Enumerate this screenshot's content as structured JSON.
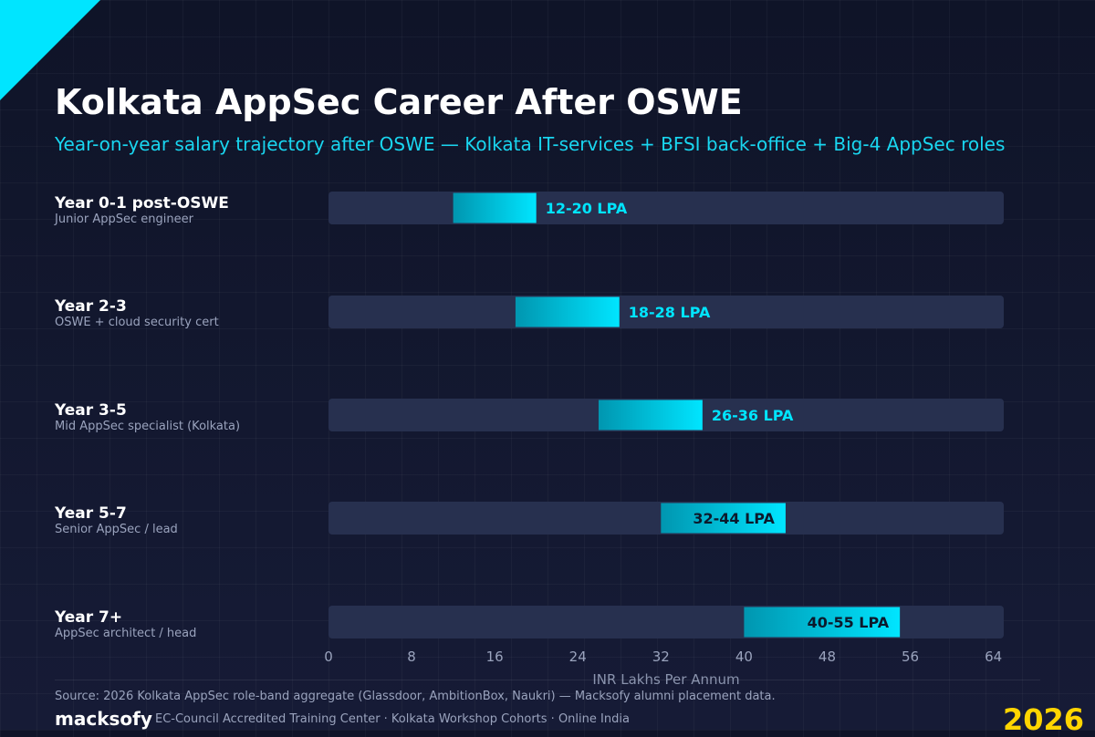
{
  "colors": {
    "accent": "#00e5ff",
    "accent_dark": "#0096b0",
    "track": "#27304f",
    "label_on_bar": "#0c1a2c",
    "year_highlight": "#ffd500"
  },
  "title": "Kolkata AppSec Career After OSWE",
  "subtitle": "Year-on-year salary trajectory after OSWE — Kolkata IT-services + BFSI back-office + Big-4 AppSec roles",
  "rows": [
    {
      "name": "Year 0-1 post-OSWE",
      "sub": "Junior AppSec engineer"
    },
    {
      "name": "Year 2-3",
      "sub": "OSWE + cloud security cert"
    },
    {
      "name": "Year 3-5",
      "sub": "Mid AppSec specialist (Kolkata)"
    },
    {
      "name": "Year 5-7",
      "sub": "Senior AppSec / lead"
    },
    {
      "name": "Year 7+",
      "sub": "AppSec architect / head"
    }
  ],
  "chart_data": {
    "type": "bar",
    "orientation": "horizontal",
    "style": "range",
    "categories": [
      "Year 0-1 post-OSWE",
      "Year 2-3",
      "Year 3-5",
      "Year 5-7",
      "Year 7+"
    ],
    "ranges": [
      [
        12,
        20
      ],
      [
        18,
        28
      ],
      [
        26,
        36
      ],
      [
        32,
        44
      ],
      [
        40,
        55
      ]
    ],
    "labels": [
      "12-20 LPA",
      "18-28 LPA",
      "26-36 LPA",
      "32-44 LPA",
      "40-55 LPA"
    ],
    "xlabel": "INR Lakhs Per Annum",
    "xlim": [
      0,
      65
    ],
    "xticks": [
      0,
      8,
      16,
      24,
      32,
      40,
      48,
      56,
      64
    ],
    "grid": false,
    "legend": "none"
  },
  "footer": {
    "source": "Source: 2026 Kolkata AppSec role-band aggregate (Glassdoor, AmbitionBox, Naukri) — Macksofy alumni placement data.",
    "brand": "macksofy",
    "tagline": "EC-Council Accredited Training Center · Kolkata Workshop Cohorts · Online India",
    "year": "2026"
  }
}
